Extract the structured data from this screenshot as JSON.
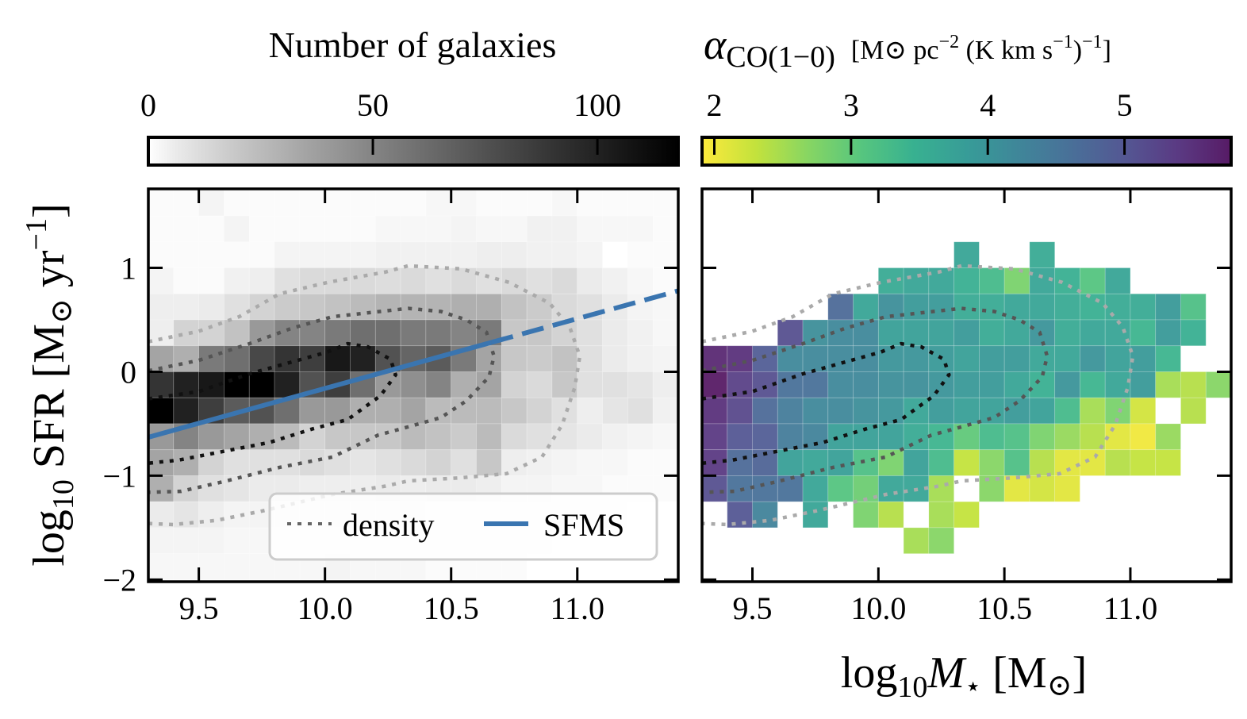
{
  "chart_data": [
    {
      "type": "heatmap",
      "panel": "left",
      "colorbar": {
        "title": "Number of galaxies",
        "colormap": "Greys",
        "range": [
          0,
          118
        ],
        "ticks": [
          0,
          50,
          100
        ],
        "tick_labels": [
          "0",
          "50",
          "100"
        ],
        "placement": "top"
      },
      "xlim": [
        9.3,
        11.4
      ],
      "ylim": [
        -2.02,
        1.76
      ],
      "x_ticks": [
        9.5,
        10.0,
        10.5,
        11.0
      ],
      "x_tick_labels": [
        "9.5",
        "10.0",
        "10.5",
        "11.0"
      ],
      "y_ticks": [
        1,
        0,
        -1,
        -2
      ],
      "y_tick_labels": [
        "1",
        "0",
        "−1",
        "−2"
      ],
      "x_bin_edges_start": 9.3,
      "x_bin_width": 0.1,
      "y_bin_edges_top": 1.75,
      "y_bin_height": 0.25,
      "counts_rows_top_to_bottom": [
        [
          1,
          1,
          3,
          1,
          1,
          1,
          1,
          1,
          1,
          1,
          1,
          2,
          2,
          1,
          1,
          1,
          2,
          1,
          1,
          1,
          1
        ],
        [
          1,
          1,
          1,
          3,
          1,
          1,
          1,
          1,
          1,
          2,
          2,
          2,
          3,
          2,
          2,
          4,
          4,
          2,
          2,
          2,
          1
        ],
        [
          1,
          1,
          1,
          1,
          1,
          3,
          3,
          3,
          3,
          4,
          4,
          4,
          4,
          5,
          5,
          4,
          4,
          3,
          0,
          1,
          1
        ],
        [
          3,
          1,
          1,
          4,
          5,
          10,
          12,
          12,
          12,
          11,
          12,
          10,
          12,
          10,
          12,
          10,
          12,
          6,
          4,
          2,
          1
        ],
        [
          5,
          5,
          6,
          10,
          15,
          18,
          20,
          22,
          25,
          28,
          28,
          28,
          30,
          30,
          22,
          18,
          12,
          10,
          6,
          3,
          2
        ],
        [
          5,
          15,
          15,
          22,
          40,
          50,
          50,
          55,
          60,
          60,
          55,
          55,
          50,
          55,
          20,
          20,
          15,
          10,
          6,
          4,
          2
        ],
        [
          35,
          30,
          55,
          60,
          80,
          90,
          85,
          105,
          100,
          75,
          65,
          70,
          55,
          35,
          20,
          18,
          22,
          10,
          6,
          4,
          3
        ],
        [
          90,
          100,
          105,
          118,
          118,
          100,
          75,
          85,
          60,
          40,
          45,
          50,
          30,
          35,
          15,
          12,
          20,
          10,
          10,
          8,
          5
        ],
        [
          118,
          100,
          85,
          70,
          75,
          60,
          40,
          40,
          30,
          30,
          35,
          25,
          25,
          25,
          20,
          15,
          10,
          5,
          8,
          10,
          4
        ],
        [
          40,
          50,
          40,
          35,
          30,
          25,
          15,
          20,
          20,
          20,
          25,
          22,
          18,
          25,
          12,
          10,
          8,
          6,
          4,
          3,
          2
        ],
        [
          35,
          30,
          15,
          10,
          10,
          10,
          12,
          10,
          8,
          10,
          12,
          15,
          10,
          20,
          5,
          4,
          3,
          2,
          2,
          1,
          1
        ],
        [
          30,
          15,
          10,
          8,
          6,
          6,
          5,
          5,
          5,
          6,
          5,
          6,
          6,
          5,
          3,
          3,
          2,
          2,
          1,
          1,
          1
        ],
        [
          6,
          8,
          5,
          3,
          3,
          3,
          3,
          3,
          3,
          3,
          3,
          2,
          2,
          2,
          2,
          1,
          1,
          1,
          1,
          0,
          0
        ],
        [
          3,
          3,
          3,
          2,
          2,
          2,
          2,
          2,
          2,
          2,
          2,
          2,
          2,
          1,
          1,
          1,
          0,
          0,
          0,
          0,
          0
        ],
        [
          2,
          2,
          2,
          2,
          2,
          2,
          2,
          3,
          2,
          2,
          2,
          1,
          1,
          1,
          1,
          0,
          0,
          0,
          0,
          0,
          0
        ]
      ],
      "sfms": {
        "name": "SFMS",
        "slope": 0.671,
        "intercept": -6.87,
        "solid_until_x": 10.66,
        "color": "#3a75b0"
      },
      "legend": {
        "placement": "lower-right",
        "entries": [
          {
            "label": "density",
            "style": "dotted"
          },
          {
            "label": "SFMS",
            "style": "solid"
          }
        ]
      }
    },
    {
      "type": "heatmap",
      "panel": "right",
      "colorbar": {
        "title_symbol": "α",
        "title_sub": "CO(1−0)",
        "title_unit": "[M⊙ pc",
        "title_unit_sup1": "−2",
        "title_unit_mid": " (K km s",
        "title_unit_sup2": "−1",
        "title_unit_close": ")",
        "title_unit_sup3": "−1",
        "title_unit_end": "]",
        "colormap": "viridis_r",
        "range": [
          1.91,
          5.78
        ],
        "ticks": [
          2,
          3,
          4,
          5
        ],
        "tick_labels": [
          "2",
          "3",
          "4",
          "5"
        ],
        "placement": "top"
      },
      "xlim": [
        9.3,
        11.4
      ],
      "ylim": [
        -2.02,
        1.76
      ],
      "x_ticks": [
        9.5,
        10.0,
        10.5,
        11.0
      ],
      "x_tick_labels": [
        "9.5",
        "10.0",
        "10.5",
        "11.0"
      ],
      "y_ticks": [
        1,
        0,
        -1,
        -2
      ],
      "alpha_co_rows_top_to_bottom": [
        [
          null,
          null,
          null,
          null,
          null,
          null,
          null,
          null,
          null,
          null,
          null,
          null,
          null,
          null,
          null,
          null,
          null,
          null,
          null,
          null,
          null
        ],
        [
          null,
          null,
          null,
          null,
          null,
          null,
          null,
          null,
          null,
          null,
          null,
          null,
          null,
          null,
          null,
          null,
          null,
          null,
          null,
          null,
          null
        ],
        [
          null,
          null,
          null,
          null,
          null,
          null,
          null,
          null,
          null,
          null,
          3.7,
          null,
          null,
          3.6,
          null,
          null,
          null,
          null,
          null,
          null,
          null
        ],
        [
          null,
          null,
          null,
          null,
          null,
          null,
          null,
          3.6,
          3.7,
          3.7,
          3.5,
          3.3,
          2.8,
          3.7,
          3.5,
          3.1,
          3.7,
          null,
          null,
          null,
          null
        ],
        [
          null,
          null,
          null,
          null,
          null,
          4.7,
          3.7,
          4.1,
          3.9,
          3.9,
          3.6,
          3.6,
          3.7,
          3.7,
          3.6,
          3.5,
          3.6,
          3.6,
          3.9,
          3.2,
          null
        ],
        [
          null,
          null,
          null,
          5.1,
          4.1,
          4.2,
          4.2,
          3.8,
          3.8,
          3.8,
          3.9,
          3.6,
          3.7,
          4.0,
          3.6,
          3.7,
          3.7,
          3.4,
          3.9,
          3.5,
          null
        ],
        [
          5.6,
          5.5,
          4.9,
          4.2,
          4.2,
          4.2,
          4.2,
          4.0,
          4.0,
          3.9,
          3.8,
          3.9,
          3.9,
          3.7,
          3.7,
          4.0,
          3.8,
          3.9,
          3.4,
          null,
          null
        ],
        [
          5.8,
          5.3,
          5.1,
          4.6,
          4.6,
          4.2,
          4.2,
          4.1,
          4.1,
          4.0,
          3.9,
          3.9,
          3.7,
          3.5,
          4.0,
          3.4,
          3.7,
          3.9,
          2.5,
          2.4,
          2.7
        ],
        [
          5.5,
          5.2,
          4.7,
          4.4,
          4.2,
          4.2,
          4.1,
          4.0,
          3.7,
          3.9,
          3.8,
          3.8,
          3.9,
          3.8,
          3.3,
          2.5,
          2.8,
          2.2,
          null,
          2.4,
          null
        ],
        [
          5.4,
          5.0,
          4.9,
          4.4,
          4.3,
          3.8,
          3.8,
          3.8,
          3.6,
          3.4,
          3.0,
          3.3,
          3.2,
          2.8,
          2.6,
          2.4,
          2.1,
          2.0,
          2.6,
          null,
          null
        ],
        [
          5.4,
          4.7,
          4.8,
          3.8,
          3.7,
          3.8,
          3.2,
          2.8,
          3.8,
          3.3,
          2.3,
          2.7,
          3.2,
          2.4,
          2.1,
          2.1,
          2.4,
          2.3,
          2.3,
          null,
          null
        ],
        [
          5.1,
          4.6,
          4.6,
          4.6,
          3.7,
          3.1,
          2.9,
          3.7,
          3.7,
          2.5,
          null,
          2.7,
          2.1,
          2.2,
          2.1,
          null,
          null,
          null,
          null,
          null,
          null
        ],
        [
          null,
          5.0,
          4.3,
          null,
          3.7,
          null,
          2.8,
          2.4,
          null,
          2.5,
          2.3,
          null,
          null,
          null,
          null,
          null,
          null,
          null,
          null,
          null,
          null
        ],
        [
          null,
          null,
          null,
          null,
          null,
          null,
          null,
          null,
          2.5,
          2.7,
          null,
          null,
          null,
          null,
          null,
          null,
          null,
          null,
          null,
          null,
          null
        ],
        [
          null,
          null,
          null,
          null,
          null,
          null,
          null,
          null,
          null,
          null,
          null,
          null,
          null,
          null,
          null,
          null,
          null,
          null,
          null,
          null,
          null
        ]
      ]
    }
  ],
  "density_contours": [
    {
      "level": "outer",
      "color": "#aaaaaa",
      "points": [
        [
          9.3,
          0.29
        ],
        [
          9.5,
          0.39
        ],
        [
          9.66,
          0.53
        ],
        [
          9.82,
          0.75
        ],
        [
          10.01,
          0.86
        ],
        [
          10.24,
          0.96
        ],
        [
          10.33,
          1.02
        ],
        [
          10.54,
          0.99
        ],
        [
          10.73,
          0.86
        ],
        [
          10.89,
          0.66
        ],
        [
          10.97,
          0.43
        ],
        [
          11.01,
          0.15
        ],
        [
          10.99,
          -0.15
        ],
        [
          10.94,
          -0.51
        ],
        [
          10.86,
          -0.82
        ],
        [
          10.72,
          -0.98
        ],
        [
          10.54,
          -1.02
        ],
        [
          10.33,
          -1.05
        ],
        [
          10.24,
          -1.1
        ],
        [
          10.03,
          -1.18
        ],
        [
          9.77,
          -1.33
        ],
        [
          9.57,
          -1.43
        ],
        [
          9.4,
          -1.47
        ],
        [
          9.3,
          -1.46
        ]
      ]
    },
    {
      "level": "middle",
      "color": "#555555",
      "points": [
        [
          9.3,
          0.01
        ],
        [
          9.5,
          0.11
        ],
        [
          9.7,
          0.27
        ],
        [
          9.87,
          0.42
        ],
        [
          10.03,
          0.53
        ],
        [
          10.33,
          0.61
        ],
        [
          10.46,
          0.58
        ],
        [
          10.56,
          0.5
        ],
        [
          10.64,
          0.38
        ],
        [
          10.67,
          0.15
        ],
        [
          10.65,
          -0.05
        ],
        [
          10.56,
          -0.28
        ],
        [
          10.46,
          -0.44
        ],
        [
          10.33,
          -0.53
        ],
        [
          10.21,
          -0.61
        ],
        [
          10.03,
          -0.82
        ],
        [
          9.82,
          -0.92
        ],
        [
          9.61,
          -1.05
        ],
        [
          9.43,
          -1.15
        ],
        [
          9.3,
          -1.16
        ]
      ]
    },
    {
      "level": "inner",
      "color": "#111111",
      "points": [
        [
          9.3,
          -0.26
        ],
        [
          9.5,
          -0.19
        ],
        [
          9.7,
          -0.02
        ],
        [
          10.01,
          0.19
        ],
        [
          10.09,
          0.27
        ],
        [
          10.17,
          0.24
        ],
        [
          10.26,
          0.12
        ],
        [
          10.28,
          -0.03
        ],
        [
          10.22,
          -0.23
        ],
        [
          10.09,
          -0.46
        ],
        [
          9.95,
          -0.55
        ],
        [
          9.78,
          -0.68
        ],
        [
          9.61,
          -0.76
        ],
        [
          9.42,
          -0.85
        ],
        [
          9.3,
          -0.88
        ]
      ]
    }
  ],
  "ylabel": {
    "log": "log",
    "sub": "10",
    "rest": " SFR [M",
    "sun": "⊙",
    "yr": " yr",
    "sup": "−1",
    "end": "]"
  },
  "xlabel": {
    "log": "log",
    "sub": "10",
    "m": "M",
    "star": "⋆",
    "rest": " [M",
    "sun": "⊙",
    "end": "]"
  }
}
